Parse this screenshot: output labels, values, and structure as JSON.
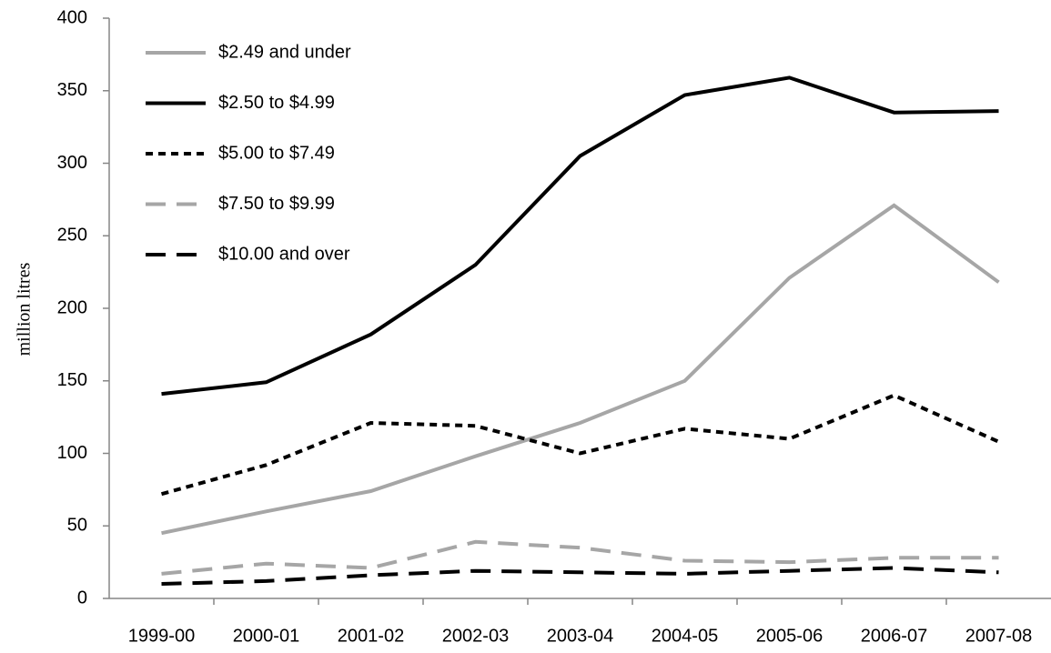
{
  "chart_data": {
    "type": "line",
    "ylabel": "million litres",
    "categories": [
      "1999-00",
      "2000-01",
      "2001-02",
      "2002-03",
      "2003-04",
      "2004-05",
      "2005-06",
      "2006-07",
      "2007-08"
    ],
    "series": [
      {
        "name": "$2.49 and under",
        "color": "#a6a6a6",
        "dash": "solid",
        "values": [
          45,
          60,
          74,
          98,
          121,
          150,
          221,
          271,
          218
        ]
      },
      {
        "name": "$2.50 to $4.99",
        "color": "#000000",
        "dash": "solid",
        "values": [
          141,
          149,
          182,
          230,
          305,
          347,
          359,
          335,
          336
        ]
      },
      {
        "name": "$5.00 to $7.49",
        "color": "#000000",
        "dash": "short",
        "values": [
          72,
          92,
          121,
          119,
          100,
          117,
          110,
          140,
          108
        ]
      },
      {
        "name": "$7.50 to $9.99",
        "color": "#a6a6a6",
        "dash": "long",
        "values": [
          17,
          24,
          21,
          39,
          35,
          26,
          25,
          28,
          28
        ]
      },
      {
        "name": "$10.00 and over",
        "color": "#000000",
        "dash": "long",
        "values": [
          10,
          12,
          16,
          19,
          18,
          17,
          19,
          21,
          18
        ]
      }
    ],
    "ylim": [
      0,
      400
    ],
    "yticks": [
      0,
      50,
      100,
      150,
      200,
      250,
      300,
      350,
      400
    ],
    "grid": false,
    "legend": "top-left"
  }
}
